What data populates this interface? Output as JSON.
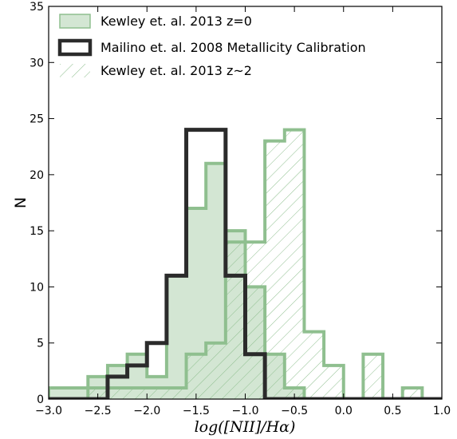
{
  "chart_data": {
    "type": "histogram",
    "xlabel": "log([NII]/Hα)",
    "ylabel": "N",
    "xlim": [
      -3.0,
      1.0
    ],
    "ylim": [
      0,
      35
    ],
    "xticks": [
      -3.0,
      -2.5,
      -2.0,
      -1.5,
      -1.0,
      -0.5,
      0.0,
      0.5,
      1.0
    ],
    "xtick_labels": [
      "−3.0",
      "−2.5",
      "−2.0",
      "−1.5",
      "−1.0",
      "−0.5",
      "0.0",
      "0.5",
      "1.0"
    ],
    "yticks": [
      0,
      5,
      10,
      15,
      20,
      25,
      30,
      35
    ],
    "ytick_labels": [
      "0",
      "5",
      "10",
      "15",
      "20",
      "25",
      "30",
      "35"
    ],
    "bin_edges": [
      -3.0,
      -2.8,
      -2.6,
      -2.4,
      -2.2,
      -2.0,
      -1.8,
      -1.6,
      -1.4,
      -1.2,
      -1.0,
      -0.8,
      -0.6,
      -0.4,
      -0.2,
      0.0,
      0.2,
      0.4,
      0.6,
      0.8,
      1.0
    ],
    "legend_position": "top-left",
    "series": [
      {
        "name": "Kewley et. al. 2013 z=0",
        "style": "filled",
        "fill": "#d3e6d3",
        "edge": "#8fbf8f",
        "values": [
          1,
          1,
          2,
          3,
          4,
          2,
          11,
          17,
          21,
          15,
          10,
          4,
          1,
          0,
          0,
          0,
          0,
          0,
          0,
          0
        ]
      },
      {
        "name": "Mailino et. al. 2008 Metallicity Calibration",
        "style": "step",
        "edge": "#2b2b2b",
        "values": [
          0,
          0,
          0,
          2,
          3,
          5,
          11,
          24,
          24,
          11,
          4,
          0,
          0,
          0,
          0,
          0,
          0,
          0,
          0,
          0
        ]
      },
      {
        "name": "Kewley et. al. 2013 z~2",
        "style": "hatched",
        "edge": "#8fbf8f",
        "values": [
          0,
          0,
          1,
          1,
          1,
          1,
          1,
          4,
          5,
          14,
          14,
          23,
          24,
          6,
          3,
          0,
          4,
          0,
          1,
          0
        ]
      }
    ]
  }
}
